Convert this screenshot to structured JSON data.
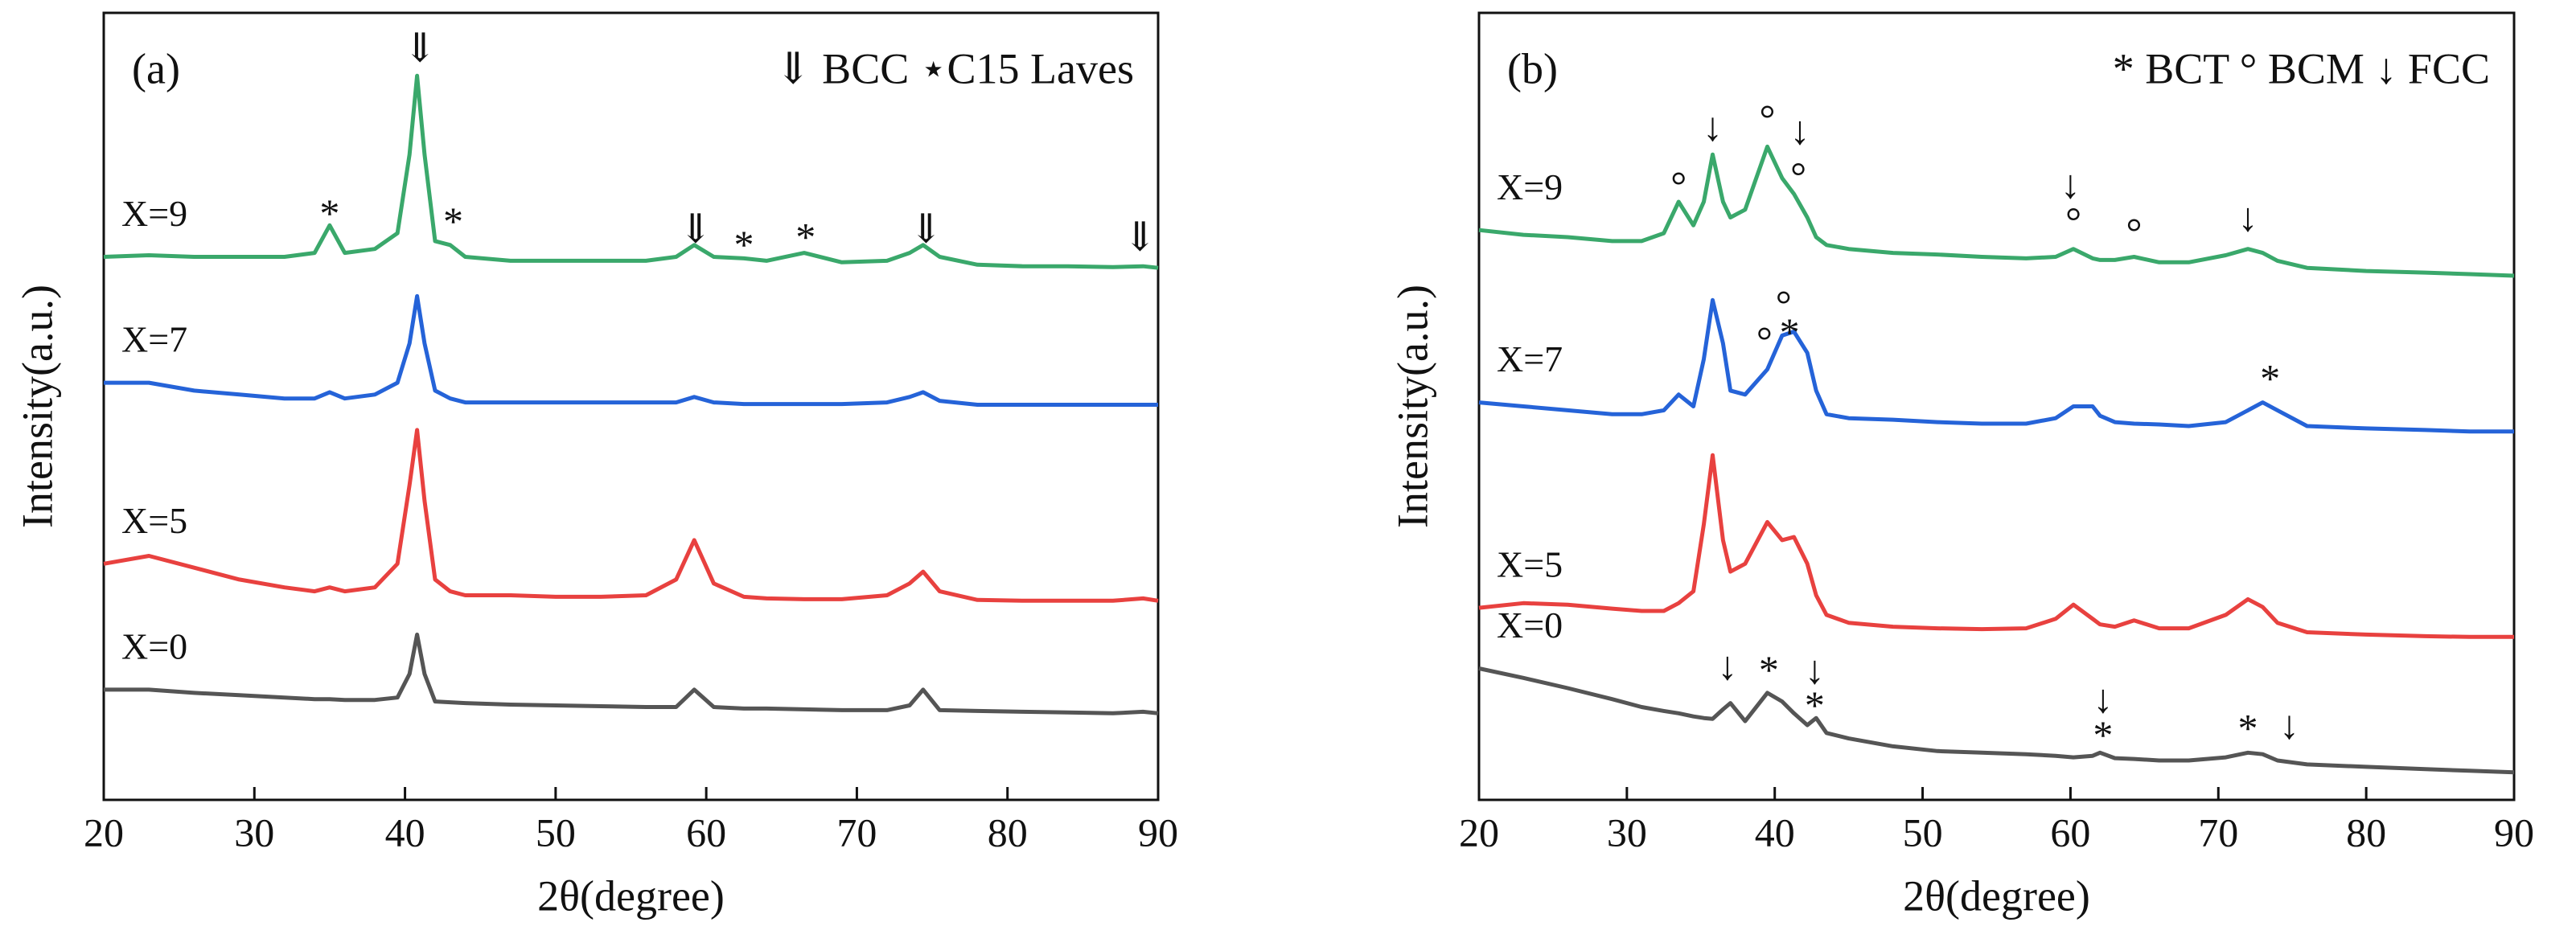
{
  "chart_data": [
    {
      "type": "line",
      "panel_label": "(a)",
      "legend_text": "⇓ BCC   ⋆C15 Laves",
      "xlabel": "2θ(degree)",
      "ylabel": "Intensity(a.u.)",
      "xlim": [
        20,
        90
      ],
      "xticks": [
        20,
        30,
        40,
        50,
        60,
        70,
        80,
        90
      ],
      "ylim": [
        0,
        100
      ],
      "x": [
        20,
        23,
        26,
        29,
        32,
        34,
        35,
        36,
        38,
        39.5,
        40.3,
        40.8,
        41.3,
        42,
        43,
        44,
        47,
        50,
        53,
        56,
        58,
        59.2,
        60.5,
        62.5,
        64,
        66.5,
        69,
        72,
        73.5,
        74.4,
        75.5,
        78,
        81,
        84,
        87,
        89,
        90
      ],
      "series": [
        {
          "name": "X=9",
          "color": "#3aa86b",
          "values": [
            69,
            69.2,
            69,
            69,
            69,
            69.5,
            73,
            69.5,
            70,
            72,
            82,
            92,
            82,
            71,
            70.5,
            69,
            68.5,
            68.5,
            68.5,
            68.5,
            69,
            70.5,
            69,
            68.8,
            68.5,
            69.5,
            68.3,
            68.5,
            69.5,
            70.5,
            69,
            68,
            67.8,
            67.8,
            67.7,
            67.8,
            67.6
          ]
        },
        {
          "name": "X=7",
          "color": "#2563d8",
          "values": [
            53,
            53,
            52,
            51.5,
            51,
            51,
            51.8,
            51,
            51.5,
            53,
            58,
            64,
            58,
            52,
            51,
            50.5,
            50.5,
            50.5,
            50.5,
            50.5,
            50.5,
            51.2,
            50.5,
            50.3,
            50.3,
            50.3,
            50.3,
            50.5,
            51.2,
            51.8,
            50.7,
            50.2,
            50.2,
            50.2,
            50.2,
            50.2,
            50.2
          ]
        },
        {
          "name": "X=5",
          "color": "#e8413f",
          "values": [
            30,
            31,
            29.5,
            28,
            27,
            26.5,
            27,
            26.5,
            27,
            30,
            40,
            47,
            38,
            28,
            26.5,
            26,
            26,
            25.8,
            25.8,
            26,
            28,
            33,
            27.5,
            25.8,
            25.6,
            25.5,
            25.5,
            26,
            27.5,
            29,
            26.5,
            25.4,
            25.3,
            25.3,
            25.3,
            25.6,
            25.3
          ]
        },
        {
          "name": "X=0",
          "color": "#555555",
          "values": [
            14,
            14,
            13.6,
            13.3,
            13,
            12.8,
            12.8,
            12.7,
            12.7,
            13,
            16,
            21,
            16,
            12.5,
            12.4,
            12.3,
            12.1,
            12,
            11.9,
            11.8,
            11.8,
            14,
            11.8,
            11.6,
            11.6,
            11.5,
            11.4,
            11.4,
            12,
            14,
            11.4,
            11.3,
            11.2,
            11.1,
            11,
            11.2,
            11
          ]
        }
      ],
      "annotations": [
        {
          "text": "⇓",
          "x": 41,
          "y": 95
        },
        {
          "text": "*",
          "x": 35,
          "y": 74
        },
        {
          "text": "*",
          "x": 43.2,
          "y": 73
        },
        {
          "text": "⇓",
          "x": 59.3,
          "y": 72
        },
        {
          "text": "*",
          "x": 62.5,
          "y": 70
        },
        {
          "text": "*",
          "x": 66.6,
          "y": 71
        },
        {
          "text": "⇓",
          "x": 74.6,
          "y": 72
        },
        {
          "text": "⇓",
          "x": 88.8,
          "y": 71
        }
      ]
    },
    {
      "type": "line",
      "panel_label": "(b)",
      "legend_text": "* BCT  ° BCM  ↓ FCC",
      "xlabel": "2θ(degree)",
      "ylabel": "Intensity(a.u.)",
      "xlim": [
        20,
        90
      ],
      "xticks": [
        20,
        30,
        40,
        50,
        60,
        70,
        80,
        90
      ],
      "ylim": [
        0,
        100
      ],
      "x": [
        20,
        23,
        26,
        29,
        31,
        32.5,
        33.5,
        34.5,
        35.2,
        35.8,
        36.5,
        37,
        38,
        39.5,
        40.5,
        41.3,
        42.2,
        42.8,
        43.5,
        45,
        48,
        51,
        54,
        57,
        59,
        60.2,
        61.5,
        62,
        63,
        64.3,
        66,
        68,
        70.5,
        72,
        73,
        74,
        76,
        80,
        84,
        87,
        90
      ],
      "series": [
        {
          "name": "X=9",
          "color": "#3aa86b",
          "values": [
            72.4,
            71.8,
            71.5,
            71,
            71,
            72,
            76,
            73,
            76,
            82,
            76,
            74,
            75,
            83,
            79,
            77,
            74,
            71.5,
            70.5,
            70,
            69.5,
            69.3,
            69,
            68.8,
            69,
            70,
            68.8,
            68.6,
            68.6,
            69,
            68.3,
            68.3,
            69.2,
            70,
            69.5,
            68.5,
            67.6,
            67.2,
            67,
            66.8,
            66.6
          ]
        },
        {
          "name": "X=7",
          "color": "#2563d8",
          "values": [
            50.5,
            50,
            49.5,
            49,
            49,
            49.5,
            51.5,
            50,
            56,
            63.5,
            58,
            52,
            51.5,
            54.7,
            59,
            59.5,
            56.8,
            52,
            49,
            48.5,
            48.3,
            48,
            47.8,
            47.8,
            48.5,
            50,
            50,
            48.8,
            48,
            47.8,
            47.7,
            47.5,
            48,
            49.5,
            50.5,
            49.5,
            47.5,
            47.2,
            47,
            46.8,
            46.8
          ]
        },
        {
          "name": "X=5",
          "color": "#e8413f",
          "values": [
            24.4,
            25,
            24.8,
            24.3,
            24,
            24,
            25,
            26.5,
            35,
            43.8,
            33,
            29,
            30,
            35.3,
            33,
            33.4,
            30,
            26,
            23.5,
            22.5,
            22,
            21.8,
            21.7,
            21.8,
            23,
            24.8,
            23,
            22.3,
            22,
            22.8,
            21.8,
            21.8,
            23.5,
            25.5,
            24.5,
            22.5,
            21.3,
            21,
            20.8,
            20.7,
            20.7
          ]
        },
        {
          "name": "X=0",
          "color": "#555555",
          "values": [
            16.7,
            15.5,
            14.2,
            12.8,
            11.8,
            11.3,
            11,
            10.6,
            10.4,
            10.3,
            11.5,
            12.3,
            10,
            13.6,
            12.5,
            11,
            9.5,
            10.4,
            8.5,
            7.8,
            6.8,
            6.2,
            6,
            5.8,
            5.6,
            5.4,
            5.6,
            6,
            5.3,
            5.2,
            5,
            5,
            5.4,
            6,
            5.8,
            5,
            4.5,
            4.2,
            3.9,
            3.7,
            3.5
          ]
        }
      ],
      "annotations": [
        {
          "text": "°",
          "x": 33.5,
          "y": 77.5
        },
        {
          "text": "↓",
          "x": 35.8,
          "y": 85
        },
        {
          "text": "°",
          "x": 39.5,
          "y": 86
        },
        {
          "text": "↓",
          "x": 41.7,
          "y": 84.5
        },
        {
          "text": "°",
          "x": 41.6,
          "y": 78.7
        },
        {
          "text": "↓",
          "x": 60,
          "y": 77.7
        },
        {
          "text": "°",
          "x": 60.2,
          "y": 73
        },
        {
          "text": "°",
          "x": 64.3,
          "y": 71.6
        },
        {
          "text": "↓",
          "x": 72,
          "y": 73.5
        },
        {
          "text": "°",
          "x": 39.3,
          "y": 57.8
        },
        {
          "text": "°",
          "x": 40.6,
          "y": 62.4
        },
        {
          "text": "*",
          "x": 41,
          "y": 58.9
        },
        {
          "text": "*",
          "x": 73.5,
          "y": 53
        },
        {
          "text": "↓",
          "x": 36.8,
          "y": 16.5
        },
        {
          "text": "*",
          "x": 39.6,
          "y": 16
        },
        {
          "text": "↓",
          "x": 42.7,
          "y": 16
        },
        {
          "text": "*",
          "x": 42.7,
          "y": 11.5
        },
        {
          "text": "↓",
          "x": 62.2,
          "y": 12.3
        },
        {
          "text": "*",
          "x": 62.2,
          "y": 7.7
        },
        {
          "text": "*",
          "x": 72,
          "y": 8.6
        },
        {
          "text": "↓",
          "x": 74.8,
          "y": 9
        }
      ]
    }
  ]
}
